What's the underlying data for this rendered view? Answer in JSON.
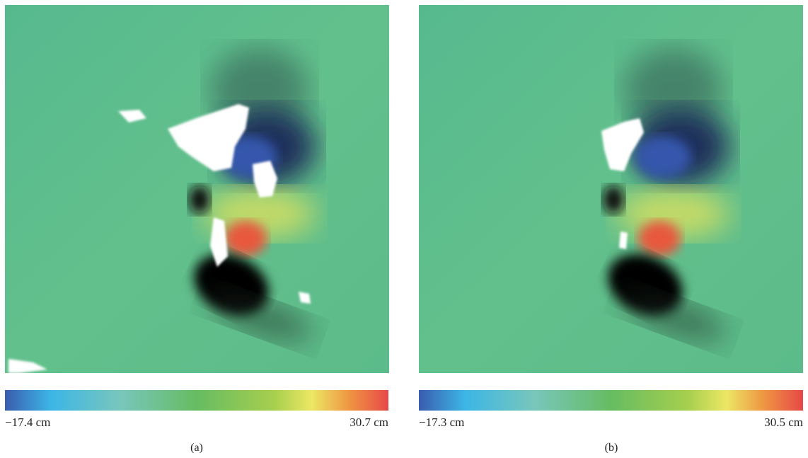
{
  "panels": [
    {
      "colorbar": {
        "min_label": "−17.4 cm",
        "max_label": "30.7 cm"
      },
      "caption": "(a)"
    },
    {
      "colorbar": {
        "min_label": "−17.3 cm",
        "max_label": "30.5 cm"
      },
      "caption": "(b)"
    }
  ]
}
